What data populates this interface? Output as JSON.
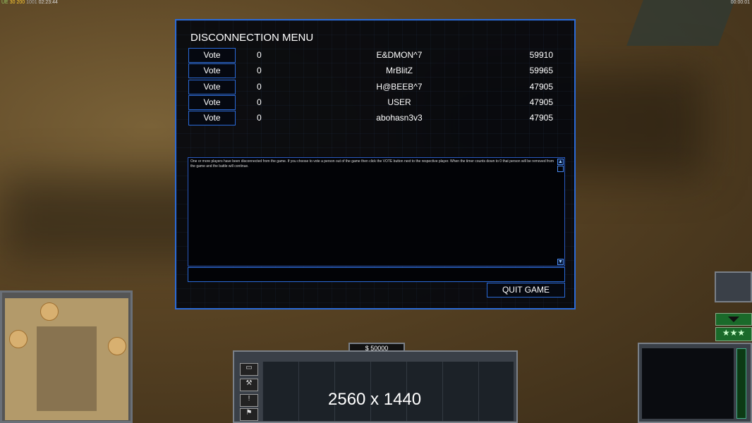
{
  "hud": {
    "top_left": {
      "a": "UE",
      "b": "30",
      "c": "200",
      "d": "1001",
      "time": "02:23:44"
    },
    "top_right_timer": "00:00:01",
    "money": "$ 50000",
    "resolution_overlay": "2560 x 1440"
  },
  "menu": {
    "title": "DISCONNECTION MENU",
    "vote_label": "Vote",
    "players": [
      {
        "votes": "0",
        "name": "E&DMON^7",
        "ping": "59910"
      },
      {
        "votes": "0",
        "name": "MrBlitZ",
        "ping": "59965"
      },
      {
        "votes": "0",
        "name": "H@BEEB^7",
        "ping": "47905"
      },
      {
        "votes": "0",
        "name": "USER",
        "ping": "47905"
      },
      {
        "votes": "0",
        "name": "abohasn3v3",
        "ping": "47905"
      }
    ],
    "message": "One or more players have been disconnected from the game. If you choose to vote a person out of the game then click the VOTE button next to the respective player. When the timer counts down to 0 that person will be removed from the game and the battle will continue.",
    "chat_value": "",
    "quit_label": "QUIT GAME"
  },
  "colors": {
    "accent": "#2a6ad8"
  },
  "side_buttons": [
    "window-icon",
    "wrench-icon",
    "alert-icon",
    "flag-icon"
  ],
  "rank_stars": "★★★"
}
